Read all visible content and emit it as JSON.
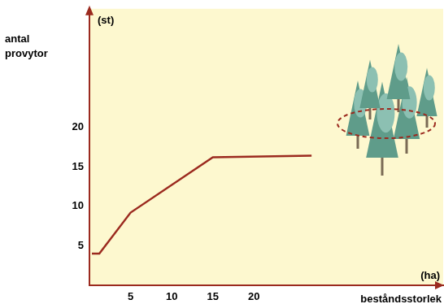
{
  "chart_data": {
    "type": "line",
    "y_label": "antal provytor",
    "y_unit": "(st)",
    "x_label": "beståndsstorlek",
    "x_unit": "(ha)",
    "x": [
      0.3,
      1.2,
      5,
      15,
      27
    ],
    "values": [
      4,
      4,
      9.2,
      16.2,
      16.4
    ],
    "color": "#9b2a1f",
    "xlim": [
      0,
      43
    ],
    "ylim": [
      0,
      35
    ],
    "xticks": [
      5,
      10,
      15,
      20
    ],
    "yticks": [
      5,
      10,
      15,
      20
    ],
    "grid": false
  }
}
